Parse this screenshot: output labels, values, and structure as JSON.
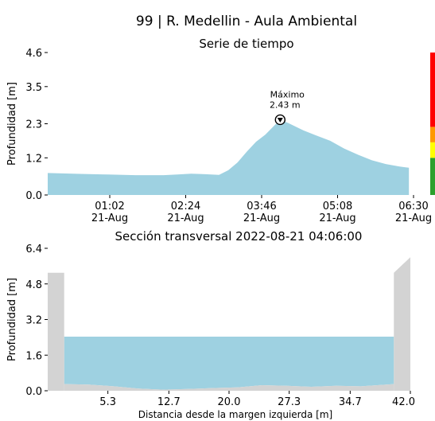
{
  "title": "99 | R. Medellin - Aula Ambiental",
  "chart_data": [
    {
      "type": "area",
      "title": "Serie de tiempo",
      "ylabel": "Profundidad [m]",
      "ylim": [
        0,
        4.6
      ],
      "yticks": [
        0.0,
        1.2,
        2.3,
        3.5,
        4.6
      ],
      "ytick_labels": [
        "0.0",
        "1.2",
        "2.3",
        "3.5",
        "4.6"
      ],
      "xlim": [
        "2022-08-20 23:55",
        "2022-08-21 06:30"
      ],
      "xticks": [
        "2022-08-21 01:02",
        "2022-08-21 02:24",
        "2022-08-21 03:46",
        "2022-08-21 05:08",
        "2022-08-21 06:30"
      ],
      "xtick_labels": [
        [
          "01:02",
          "21-Aug"
        ],
        [
          "02:24",
          "21-Aug"
        ],
        [
          "03:46",
          "21-Aug"
        ],
        [
          "05:08",
          "21-Aug"
        ],
        [
          "06:30",
          "21-Aug"
        ]
      ],
      "fill_color": "#9ed1e1",
      "x": [
        "2022-08-20 23:55",
        "2022-08-21 00:30",
        "2022-08-21 01:00",
        "2022-08-21 01:30",
        "2022-08-21 02:00",
        "2022-08-21 02:15",
        "2022-08-21 02:30",
        "2022-08-21 02:45",
        "2022-08-21 03:00",
        "2022-08-21 03:10",
        "2022-08-21 03:20",
        "2022-08-21 03:30",
        "2022-08-21 03:40",
        "2022-08-21 03:50",
        "2022-08-21 04:00",
        "2022-08-21 04:06",
        "2022-08-21 04:15",
        "2022-08-21 04:30",
        "2022-08-21 04:45",
        "2022-08-21 05:00",
        "2022-08-21 05:15",
        "2022-08-21 05:30",
        "2022-08-21 05:45",
        "2022-08-21 06:00",
        "2022-08-21 06:15",
        "2022-08-21 06:25"
      ],
      "y": [
        0.71,
        0.68,
        0.66,
        0.64,
        0.64,
        0.66,
        0.69,
        0.67,
        0.65,
        0.8,
        1.05,
        1.4,
        1.72,
        1.95,
        2.25,
        2.43,
        2.32,
        2.1,
        1.92,
        1.75,
        1.5,
        1.3,
        1.12,
        1.0,
        0.92,
        0.88
      ],
      "annotation": {
        "label": "Máximo",
        "value_label": "2.43 m",
        "x": "2022-08-21 04:06",
        "y": 2.43
      },
      "alert_bar": [
        {
          "color": "#2ca02c",
          "from": 0.0,
          "to": 1.2
        },
        {
          "color": "#ffff00",
          "from": 1.2,
          "to": 1.7
        },
        {
          "color": "#ff9900",
          "from": 1.7,
          "to": 2.2
        },
        {
          "color": "#ff0000",
          "from": 2.2,
          "to": 4.6
        }
      ]
    },
    {
      "type": "area",
      "title": "Sección transversal 2022-08-21 04:06:00",
      "ylabel": "Profundidad [m]",
      "xlabel": "Distancia desde la margen izquierda [m]",
      "ylim": [
        0,
        6.4
      ],
      "yticks": [
        0.0,
        1.6,
        3.2,
        4.8,
        6.4
      ],
      "ytick_labels": [
        "0.0",
        "1.6",
        "3.2",
        "4.8",
        "6.4"
      ],
      "xlim": [
        -2.0,
        42.0
      ],
      "xticks": [
        5.3,
        12.7,
        20.0,
        27.3,
        34.7,
        42.0
      ],
      "xtick_labels": [
        "5.3",
        "12.7",
        "20.0",
        "27.3",
        "34.7",
        "42.0"
      ],
      "water_level": 2.43,
      "water_color": "#9ed1e1",
      "bank_color": "#d3d3d3",
      "bed_x": [
        0.0,
        3.0,
        6.0,
        9.0,
        12.0,
        15.0,
        18.0,
        21.0,
        24.0,
        27.0,
        30.0,
        33.0,
        36.0,
        40.0
      ],
      "bed_y": [
        0.3,
        0.28,
        0.2,
        0.1,
        0.05,
        0.08,
        0.12,
        0.15,
        0.25,
        0.22,
        0.18,
        0.22,
        0.2,
        0.3
      ],
      "left_bank_x": [
        -2.0,
        0.0
      ],
      "left_bank_top": 5.3,
      "right_bank_x": [
        40.0,
        42.0
      ],
      "right_bank_top": [
        5.3,
        6.0
      ]
    }
  ]
}
